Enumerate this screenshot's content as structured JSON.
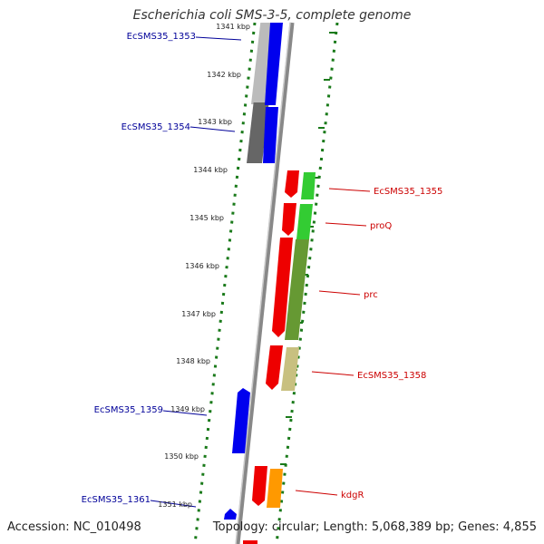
{
  "title": "Escherichia coli SMS-3-5, complete genome",
  "footer": {
    "accession": "Accession: NC_010498",
    "summary": "Topology: circular; Length: 5,068,389 bp; Genes: 4,855"
  },
  "axis": {
    "ticks": [
      "1341 kbp",
      "1342 kbp",
      "1343 kbp",
      "1344 kbp",
      "1345 kbp",
      "1346 kbp",
      "1347 kbp",
      "1348 kbp",
      "1349 kbp",
      "1350 kbp",
      "1351 kbp"
    ]
  },
  "colors": {
    "forward_label": "#cc0000",
    "reverse_label": "#000099",
    "ticks": "#1a7a1a",
    "backbone": "#888888"
  },
  "genes": [
    {
      "id": "EcSMS35_1353",
      "label": "EcSMS35_1353",
      "side": "left"
    },
    {
      "id": "EcSMS35_1354",
      "label": "EcSMS35_1354",
      "side": "left"
    },
    {
      "id": "EcSMS35_1355",
      "label": "EcSMS35_1355",
      "side": "right"
    },
    {
      "id": "proQ",
      "label": "proQ",
      "side": "right"
    },
    {
      "id": "prc",
      "label": "prc",
      "side": "right"
    },
    {
      "id": "EcSMS35_1358",
      "label": "EcSMS35_1358",
      "side": "right"
    },
    {
      "id": "EcSMS35_1359",
      "label": "EcSMS35_1359",
      "side": "left"
    },
    {
      "id": "kdgR",
      "label": "kdgR",
      "side": "right"
    },
    {
      "id": "EcSMS35_1361",
      "label": "EcSMS35_1361",
      "side": "left"
    }
  ]
}
